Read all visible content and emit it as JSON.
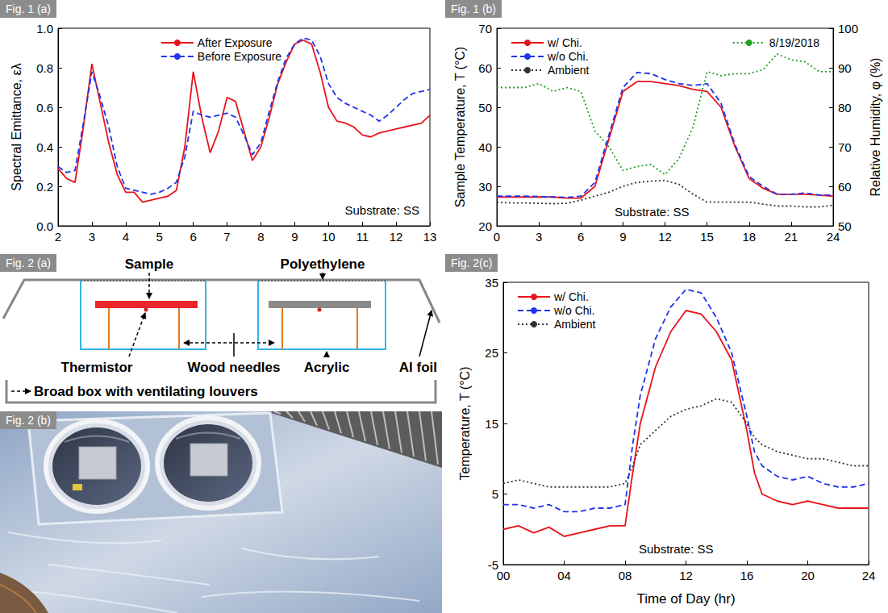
{
  "chart_data": [
    {
      "type": "line",
      "title": "Fig. 1 (a)",
      "y_label": "Spectral Emittance, ελ",
      "annotations": [
        "Substrate: SS"
      ],
      "x": [
        2,
        2.25,
        2.5,
        2.75,
        3,
        3.25,
        3.5,
        3.75,
        4,
        4.25,
        4.5,
        4.75,
        5,
        5.25,
        5.5,
        5.75,
        6,
        6.25,
        6.5,
        6.75,
        7,
        7.25,
        7.5,
        7.75,
        8,
        8.25,
        8.5,
        8.75,
        9,
        9.25,
        9.5,
        9.75,
        10,
        10.25,
        10.5,
        10.75,
        11,
        11.25,
        11.5,
        11.75,
        12,
        12.25,
        12.5,
        12.75,
        13
      ],
      "series": [
        {
          "name": "After Exposure",
          "color": "#e8141b",
          "line_style": "solid",
          "values": [
            0.29,
            0.24,
            0.22,
            0.5,
            0.82,
            0.62,
            0.42,
            0.26,
            0.17,
            0.17,
            0.12,
            0.13,
            0.14,
            0.15,
            0.18,
            0.4,
            0.78,
            0.55,
            0.37,
            0.48,
            0.65,
            0.63,
            0.48,
            0.33,
            0.4,
            0.55,
            0.72,
            0.83,
            0.92,
            0.94,
            0.92,
            0.78,
            0.6,
            0.53,
            0.52,
            0.5,
            0.46,
            0.45,
            0.47,
            0.48,
            0.49,
            0.5,
            0.51,
            0.52,
            0.56
          ]
        },
        {
          "name": "Before Exposure",
          "color": "#2233ee",
          "line_style": "dashed",
          "values": [
            0.3,
            0.27,
            0.28,
            0.52,
            0.78,
            0.65,
            0.5,
            0.3,
            0.19,
            0.18,
            0.17,
            0.16,
            0.17,
            0.19,
            0.22,
            0.35,
            0.58,
            0.56,
            0.55,
            0.56,
            0.57,
            0.55,
            0.46,
            0.36,
            0.42,
            0.58,
            0.73,
            0.85,
            0.92,
            0.95,
            0.94,
            0.86,
            0.72,
            0.65,
            0.62,
            0.6,
            0.58,
            0.56,
            0.53,
            0.56,
            0.6,
            0.64,
            0.67,
            0.68,
            0.69
          ]
        }
      ],
      "xlim": [
        2,
        13
      ],
      "xticks": [
        2,
        3,
        4,
        5,
        6,
        7,
        8,
        9,
        10,
        11,
        12,
        13
      ],
      "ylim": [
        0,
        1
      ],
      "yticks": [
        {
          "value": 0,
          "label": "0.0"
        },
        0.2,
        0.4,
        0.6,
        0.8,
        {
          "value": 1,
          "label": "1.0"
        }
      ],
      "legend": "top",
      "grid": false
    },
    {
      "type": "line",
      "title": "Fig. 1 (b)",
      "y_label": "Sample Temperature, T (°C)",
      "y2_label": "Relative Humidity, φ (%)",
      "annotations": [
        "Substrate: SS"
      ],
      "x": [
        0,
        1,
        2,
        3,
        4,
        5,
        6,
        7,
        8,
        9,
        10,
        11,
        12,
        13,
        14,
        15,
        16,
        17,
        18,
        19,
        20,
        21,
        22,
        23,
        24
      ],
      "series": [
        {
          "name": "w/ Chi.",
          "color": "#e8141b",
          "line_style": "solid",
          "values": [
            27.3,
            27.3,
            27.3,
            27.3,
            27.3,
            27.0,
            27.0,
            30.0,
            42.0,
            54.0,
            56.5,
            56.5,
            56.0,
            55.5,
            54.5,
            54.0,
            50.0,
            40.0,
            32.0,
            29.5,
            28.0,
            28.0,
            28.0,
            27.8,
            27.5
          ]
        },
        {
          "name": "w/o Chi.",
          "color": "#2233ee",
          "line_style": "dashed",
          "values": [
            27.5,
            27.5,
            27.5,
            27.4,
            27.3,
            27.2,
            27.5,
            31.0,
            43.0,
            55.0,
            58.8,
            58.5,
            57.0,
            56.0,
            55.5,
            56.0,
            51.0,
            40.5,
            32.5,
            30.0,
            28.0,
            28.0,
            28.3,
            27.8,
            27.8
          ]
        },
        {
          "name": "Ambient",
          "color": "#333333",
          "line_style": "dotted",
          "values": [
            26.0,
            25.8,
            25.8,
            25.7,
            25.6,
            25.7,
            26.5,
            27.5,
            28.5,
            30.0,
            31.0,
            31.3,
            31.5,
            30.5,
            28.0,
            26.0,
            26.0,
            26.0,
            26.0,
            25.5,
            25.0,
            25.0,
            24.8,
            24.8,
            25.2
          ]
        },
        {
          "name": "8/19/2018",
          "color": "#22a022",
          "line_style": "dotted",
          "axis": "y2",
          "values": [
            85,
            85,
            85,
            86,
            84,
            85,
            84,
            74,
            70,
            64,
            65,
            65.5,
            63,
            67,
            75,
            89,
            88,
            88.5,
            88.5,
            89.5,
            93.5,
            92,
            91.5,
            89,
            89
          ]
        }
      ],
      "xlim": [
        0,
        24
      ],
      "xticks": [
        0,
        3,
        6,
        9,
        12,
        15,
        18,
        21,
        24
      ],
      "ylim": [
        20,
        70
      ],
      "yticks": [
        20,
        30,
        40,
        50,
        60,
        70
      ],
      "y2lim": [
        50,
        100
      ],
      "y2ticks": [
        50,
        60,
        70,
        80,
        90,
        100
      ],
      "legend": "upper left",
      "grid": false
    },
    {
      "type": "line",
      "title": "Fig. 2(c)",
      "x_label": "Time of Day (hr)",
      "y_label": "Temperature, T (°C)",
      "annotations": [
        "Substrate: SS"
      ],
      "x": [
        0,
        1,
        2,
        3,
        4,
        5,
        6,
        7,
        8,
        8.5,
        9,
        10,
        11,
        12,
        13,
        14,
        15,
        16,
        16.5,
        17,
        18,
        19,
        20,
        21,
        22,
        23,
        24
      ],
      "series": [
        {
          "name": "w/ Chi.",
          "color": "#e8141b",
          "line_style": "solid",
          "values": [
            0,
            0.5,
            -0.5,
            0.3,
            -1,
            -0.5,
            0,
            0.5,
            0.5,
            8,
            15,
            23,
            28,
            31,
            30.5,
            28,
            24,
            14,
            8,
            5,
            4,
            3.5,
            4,
            3.5,
            3,
            3,
            3
          ]
        },
        {
          "name": "w/o Chi.",
          "color": "#2233ee",
          "line_style": "dashed",
          "values": [
            3.5,
            3.5,
            3,
            3.5,
            2.5,
            2.5,
            3,
            3,
            3.5,
            12,
            19,
            27,
            31.5,
            34,
            33.5,
            30,
            25,
            16,
            11,
            9,
            7.5,
            7,
            7.5,
            6.5,
            6,
            6,
            6.5
          ]
        },
        {
          "name": "Ambient",
          "color": "#333333",
          "line_style": "dotted",
          "values": [
            6.5,
            7,
            6.5,
            6,
            6,
            6,
            6,
            6,
            6.5,
            9,
            12,
            14,
            16,
            17,
            17.5,
            18.5,
            18,
            15,
            13,
            12,
            11,
            10.5,
            10,
            10,
            9.5,
            9,
            9
          ]
        }
      ],
      "xlim": [
        0,
        24
      ],
      "xticks": [
        {
          "value": 0,
          "label": "00"
        },
        {
          "value": 4,
          "label": "04"
        },
        {
          "value": 8,
          "label": "08"
        },
        12,
        16,
        20,
        24
      ],
      "ylim": [
        -5,
        35
      ],
      "yticks": [
        -5,
        5,
        15,
        25,
        35
      ],
      "legend": "upper left",
      "grid": false
    }
  ],
  "diagram": {
    "title": "Fig. 2 (a)",
    "labels": {
      "sample": "Sample",
      "polyethylene": "Polyethylene",
      "thermistor": "Thermistor",
      "wood_needles": "Wood needles",
      "acrylic": "Acrylic",
      "al_foil": "Al foil",
      "box": "Broad box with ventilating louvers"
    }
  },
  "photo": {
    "title": "Fig. 2 (b)"
  }
}
